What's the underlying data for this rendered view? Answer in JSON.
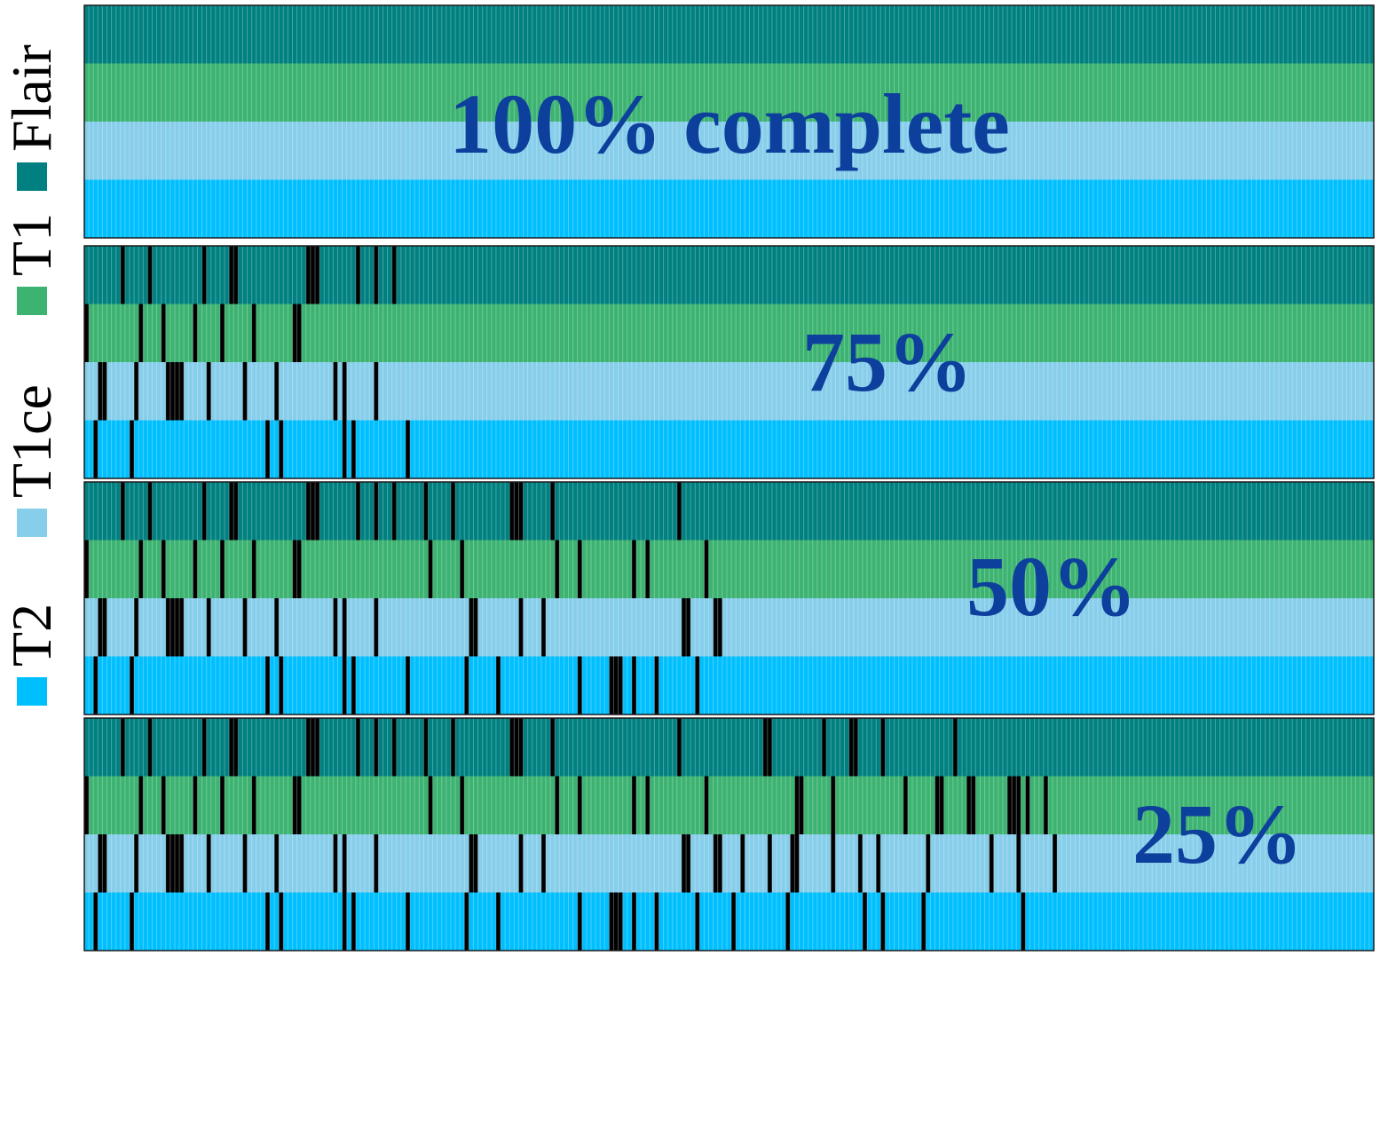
{
  "chart_data": {
    "type": "heatmap",
    "title": "",
    "xlabel": "",
    "ylabel": "",
    "n_samples": 285,
    "missing_color": "#000000",
    "legend": {
      "placement": "left-vertical",
      "items": [
        {
          "label": "T2",
          "color": "#00bfff"
        },
        {
          "label": "T1ce",
          "color": "#87ceeb"
        },
        {
          "label": "T1",
          "color": "#3cb371"
        },
        {
          "label": "Flair",
          "color": "#008080"
        }
      ]
    },
    "rows": [
      {
        "modality": "Flair",
        "color": "#008080"
      },
      {
        "modality": "T1",
        "color": "#3cb371"
      },
      {
        "modality": "T1ce",
        "color": "#87ceeb"
      },
      {
        "modality": "T2",
        "color": "#00bfff"
      }
    ],
    "panels": [
      {
        "label": "100% complete",
        "missing": {
          "Flair": [],
          "T1": [],
          "T1ce": [],
          "T2": []
        }
      },
      {
        "label": "75%",
        "missing": {
          "Flair": [
            8,
            14,
            26,
            32,
            33,
            49,
            50,
            51,
            60,
            64,
            68
          ],
          "T1": [
            0,
            12,
            17,
            24,
            30,
            37,
            46,
            47
          ],
          "T1ce": [
            3,
            4,
            11,
            18,
            19,
            20,
            21,
            27,
            35,
            42,
            55,
            57,
            64
          ],
          "T2": [
            2,
            10,
            40,
            43,
            57,
            59,
            71
          ]
        }
      },
      {
        "label": "50%",
        "missing": {
          "Flair": [
            8,
            14,
            26,
            32,
            33,
            49,
            50,
            51,
            60,
            64,
            68,
            75,
            81,
            94,
            95,
            96,
            103,
            131
          ],
          "T1": [
            0,
            12,
            17,
            24,
            30,
            37,
            46,
            47,
            76,
            83,
            104,
            109,
            121,
            124,
            137
          ],
          "T1ce": [
            3,
            4,
            11,
            18,
            19,
            20,
            21,
            27,
            35,
            42,
            55,
            57,
            64,
            85,
            86,
            96,
            101,
            132,
            133,
            139,
            140
          ],
          "T2": [
            2,
            10,
            40,
            43,
            57,
            59,
            71,
            84,
            91,
            109,
            116,
            117,
            118,
            121,
            126,
            135
          ]
        }
      },
      {
        "label": "25%",
        "missing": {
          "Flair": [
            8,
            14,
            26,
            32,
            33,
            49,
            50,
            51,
            60,
            64,
            68,
            75,
            81,
            94,
            95,
            96,
            103,
            131,
            150,
            151,
            163,
            169,
            170,
            176,
            192
          ],
          "T1": [
            0,
            12,
            17,
            24,
            30,
            37,
            46,
            47,
            76,
            83,
            104,
            109,
            121,
            124,
            137,
            157,
            158,
            165,
            181,
            188,
            189,
            195,
            196,
            204,
            205,
            206,
            208,
            212
          ],
          "T1ce": [
            3,
            4,
            11,
            18,
            19,
            20,
            21,
            27,
            35,
            42,
            55,
            57,
            64,
            85,
            86,
            96,
            101,
            132,
            133,
            139,
            140,
            145,
            151,
            156,
            157,
            165,
            171,
            175,
            186,
            200,
            206,
            214
          ],
          "T2": [
            2,
            10,
            40,
            43,
            57,
            59,
            71,
            84,
            91,
            109,
            116,
            117,
            118,
            121,
            126,
            135,
            143,
            155,
            172,
            176,
            185,
            207
          ]
        }
      }
    ]
  }
}
